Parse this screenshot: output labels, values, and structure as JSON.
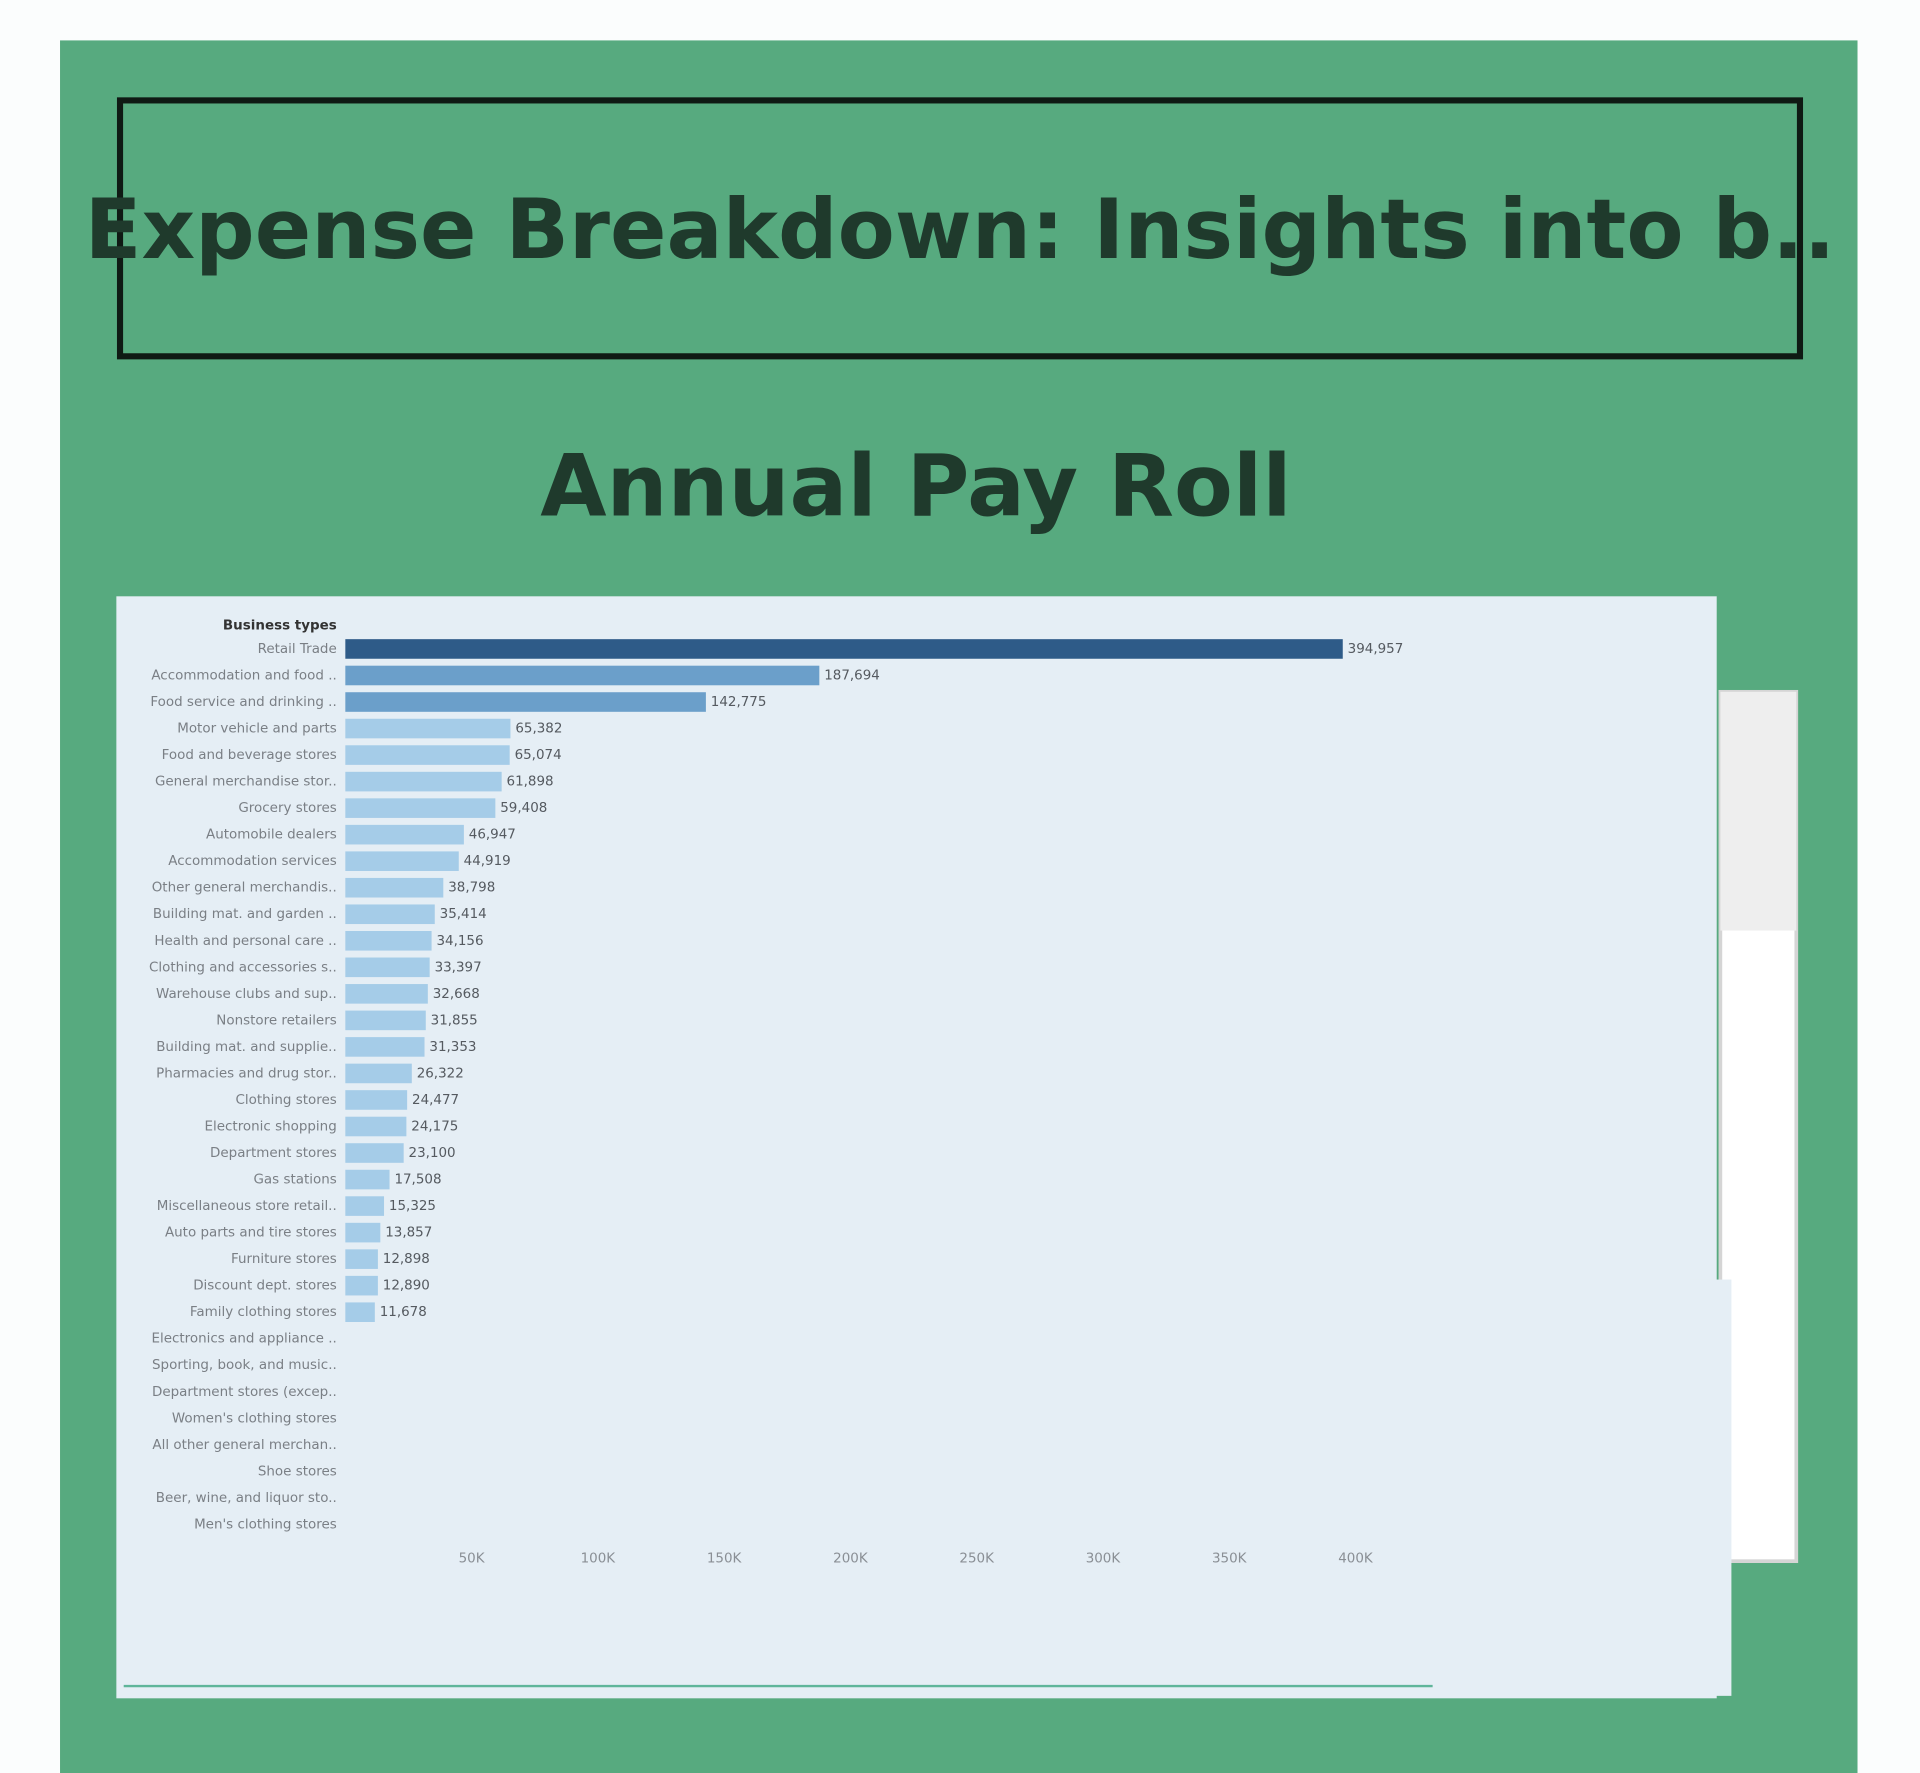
{
  "chart_data": {
    "type": "bar",
    "orientation": "horizontal",
    "dashboard_title": "Expense Breakdown: Insights into b..",
    "title": "Annual Pay Roll",
    "y_label": "Business types",
    "categories": [
      "Retail Trade",
      "Accommodation and food ..",
      "Food service and drinking ..",
      "Motor vehicle and parts",
      "Food and beverage stores",
      "General merchandise stor..",
      "Grocery stores",
      "Automobile dealers",
      "Accommodation services",
      "Other general merchandis..",
      "Building mat. and garden ..",
      "Health and personal care ..",
      "Clothing and accessories s..",
      "Warehouse clubs and sup..",
      "Nonstore retailers",
      "Building mat. and supplie..",
      "Pharmacies and drug stor..",
      "Clothing stores",
      "Electronic shopping",
      "Department stores",
      "Gas stations",
      "Miscellaneous store retail..",
      "Auto parts and tire stores",
      "Furniture stores",
      "Discount dept. stores",
      "Family clothing stores",
      "Electronics and appliance ..",
      "Sporting, book, and music..",
      "Department stores (excep..",
      "Women's clothing stores",
      "All other general merchan..",
      "Shoe stores",
      "Beer, wine, and liquor sto..",
      "Men's clothing stores"
    ],
    "values": [
      394957,
      187694,
      142775,
      65382,
      65074,
      61898,
      59408,
      46947,
      44919,
      38798,
      35414,
      34156,
      33397,
      32668,
      31855,
      31353,
      26322,
      24477,
      24175,
      23100,
      17508,
      15325,
      13857,
      12898,
      12890,
      11678,
      null,
      null,
      null,
      null,
      null,
      null,
      null,
      null
    ],
    "value_labels": [
      "394,957",
      "187,694",
      "142,775",
      "65,382",
      "65,074",
      "61,898",
      "59,408",
      "46,947",
      "44,919",
      "38,798",
      "35,414",
      "34,156",
      "33,397",
      "32,668",
      "31,855",
      "31,353",
      "26,322",
      "24,477",
      "24,175",
      "23,100",
      "17,508",
      "15,325",
      "13,857",
      "12,898",
      "12,890",
      "11,678",
      null,
      null,
      null,
      null,
      null,
      null,
      null,
      null
    ],
    "colors": [
      "#2e5b88",
      "#6b9fca",
      "#6b9fca",
      "#a5cce8",
      "#a5cce8",
      "#a5cce8",
      "#a5cce8",
      "#a5cce8",
      "#a5cce8",
      "#a5cce8",
      "#a5cce8",
      "#a5cce8",
      "#a5cce8",
      "#a5cce8",
      "#a5cce8",
      "#a5cce8",
      "#a5cce8",
      "#a5cce8",
      "#a5cce8",
      "#a5cce8",
      "#a5cce8",
      "#a5cce8",
      "#a5cce8",
      "#a5cce8",
      "#a5cce8",
      "#a5cce8",
      "#a5cce8",
      "#a5cce8",
      "#a5cce8",
      "#a5cce8",
      "#a5cce8",
      "#a5cce8",
      "#a5cce8",
      "#a5cce8"
    ],
    "xlim": [
      0,
      430000
    ],
    "xticks": [
      {
        "value": 50000,
        "label": "50K"
      },
      {
        "value": 100000,
        "label": "100K"
      },
      {
        "value": 150000,
        "label": "150K"
      },
      {
        "value": 200000,
        "label": "200K"
      },
      {
        "value": 250000,
        "label": "250K"
      },
      {
        "value": 300000,
        "label": "300K"
      },
      {
        "value": 350000,
        "label": "350K"
      },
      {
        "value": 400000,
        "label": "400K"
      }
    ]
  }
}
